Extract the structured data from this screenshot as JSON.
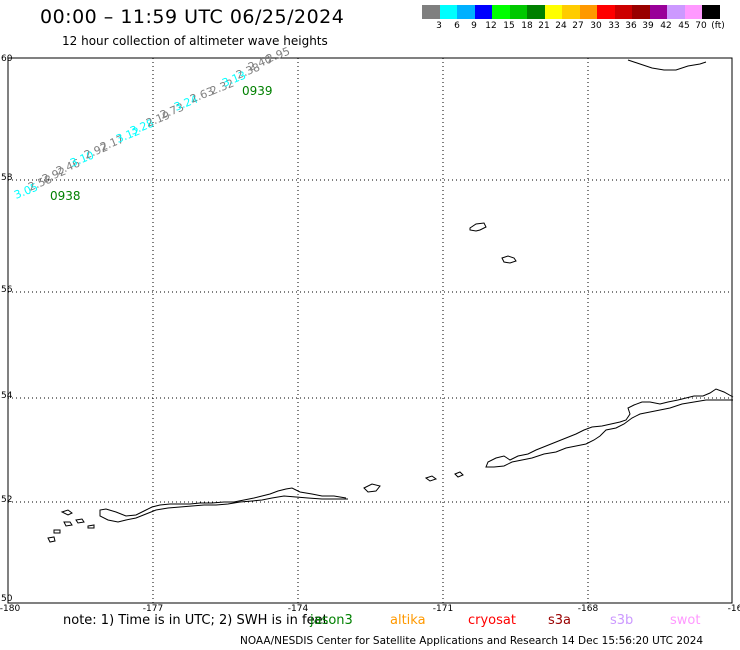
{
  "title": "00:00 – 11:59 UTC 06/25/2024",
  "subtitle": "12 hour collection of altimeter wave heights",
  "legend": {
    "colors": [
      "#7f7f7f",
      "#00ffff",
      "#00b0ff",
      "#0000ff",
      "#00ff00",
      "#00c800",
      "#008000",
      "#ffff00",
      "#ffcc00",
      "#ff9900",
      "#ff0000",
      "#cc0000",
      "#990000",
      "#990099",
      "#cc99ff",
      "#ff99ff",
      "#000000"
    ],
    "labels": [
      "3",
      "6",
      "9",
      "12",
      "15",
      "18",
      "21",
      "24",
      "27",
      "30",
      "33",
      "36",
      "39",
      "42",
      "45",
      "70",
      "(ft)"
    ]
  },
  "axes": {
    "lon_ticks": [
      "-180",
      "-177",
      "-174",
      "-171",
      "-168",
      "-16"
    ],
    "lat_ticks": [
      "60",
      "58",
      "56",
      "54",
      "52",
      "50"
    ]
  },
  "tracks": [
    {
      "time_labels": [
        {
          "text": "0938",
          "color": "#008000"
        },
        {
          "text": "0939",
          "color": "#008000"
        }
      ],
      "swh": [
        {
          "v": "3.05",
          "color": "#00ffff"
        },
        {
          "v": "2.58",
          "color": "#7f7f7f"
        },
        {
          "v": "2.92",
          "color": "#7f7f7f"
        },
        {
          "v": "2.46",
          "color": "#7f7f7f"
        },
        {
          "v": "3.10",
          "color": "#00ffff"
        },
        {
          "v": "2.92",
          "color": "#7f7f7f"
        },
        {
          "v": "2.17",
          "color": "#7f7f7f"
        },
        {
          "v": "3.12",
          "color": "#00ffff"
        },
        {
          "v": "3.28",
          "color": "#00ffff"
        },
        {
          "v": "2.19",
          "color": "#7f7f7f"
        },
        {
          "v": "2.73",
          "color": "#7f7f7f"
        },
        {
          "v": "3.24",
          "color": "#00ffff"
        },
        {
          "v": "2.63",
          "color": "#7f7f7f"
        },
        {
          "v": "2.32",
          "color": "#7f7f7f"
        },
        {
          "v": "3.13",
          "color": "#00ffff"
        },
        {
          "v": "2.38",
          "color": "#7f7f7f"
        },
        {
          "v": "2.40",
          "color": "#7f7f7f"
        },
        {
          "v": "2.95",
          "color": "#7f7f7f"
        }
      ]
    }
  ],
  "note": "note:  1) Time is in UTC;  2) SWH is in feet",
  "satellites": [
    {
      "name": "jason3",
      "color": "#008000"
    },
    {
      "name": "altika",
      "color": "#ff9900"
    },
    {
      "name": "cryosat",
      "color": "#ff0000"
    },
    {
      "name": "s3a",
      "color": "#990000"
    },
    {
      "name": "s3b",
      "color": "#cc99ff"
    },
    {
      "name": "swot",
      "color": "#ff99ff"
    }
  ],
  "credit": "NOAA/NESDIS Center for Satellite Applications and Research    14 Dec 15:56:20 UTC 2024"
}
